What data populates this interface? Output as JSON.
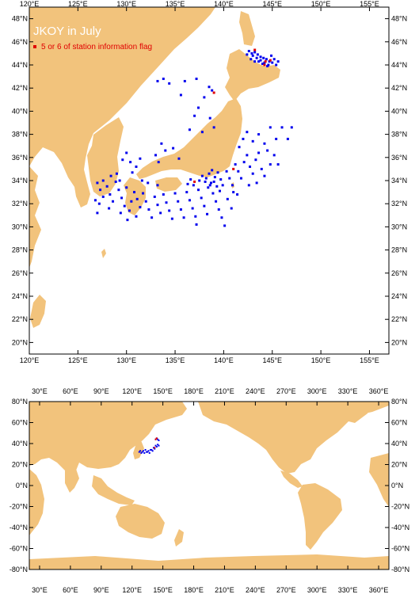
{
  "colors": {
    "land": "#F2C37C",
    "ocean": "#FFFFFF",
    "station": "#0000EE",
    "flagged": "#E00000",
    "frame": "#000000"
  },
  "top_map": {
    "title": "JKOY in July",
    "legend_text": "5 or 6 of station information flag",
    "x_ticks": [
      "120°E",
      "125°E",
      "130°E",
      "135°E",
      "140°E",
      "145°E",
      "150°E",
      "155°E"
    ],
    "x_tick_values": [
      120,
      125,
      130,
      135,
      140,
      145,
      150,
      155
    ],
    "y_ticks": [
      "20°N",
      "22°N",
      "24°N",
      "26°N",
      "28°N",
      "30°N",
      "32°N",
      "34°N",
      "36°N",
      "38°N",
      "40°N",
      "42°N",
      "44°N",
      "46°N",
      "48°N"
    ],
    "y_tick_values": [
      20,
      22,
      24,
      26,
      28,
      30,
      32,
      34,
      36,
      38,
      40,
      42,
      44,
      46,
      48
    ],
    "lon_range": [
      120,
      157
    ],
    "lat_range": [
      19,
      49
    ]
  },
  "bottom_map": {
    "x_ticks": [
      "30°E",
      "60°E",
      "90°E",
      "120°E",
      "150°E",
      "180°E",
      "210°E",
      "240°E",
      "270°E",
      "300°E",
      "330°E",
      "360°E"
    ],
    "x_tick_values": [
      30,
      60,
      90,
      120,
      150,
      180,
      210,
      240,
      270,
      300,
      330,
      360
    ],
    "y_ticks": [
      "80°N",
      "60°N",
      "40°N",
      "20°N",
      "0°N",
      "-20°N",
      "-40°N",
      "-60°N",
      "-80°N"
    ],
    "y_tick_values": [
      80,
      60,
      40,
      20,
      0,
      -20,
      -40,
      -60,
      -80
    ],
    "lon_range": [
      20,
      370
    ],
    "lat_range": [
      -80,
      80
    ]
  },
  "chart_data": {
    "type": "scatter",
    "stations": [
      [
        127.0,
        33.8
      ],
      [
        127.3,
        33.2
      ],
      [
        127.6,
        32.6
      ],
      [
        127.2,
        32.0
      ],
      [
        128.0,
        33.5
      ],
      [
        128.3,
        32.8
      ],
      [
        128.6,
        32.2
      ],
      [
        128.2,
        31.6
      ],
      [
        128.9,
        33.9
      ],
      [
        129.2,
        33.2
      ],
      [
        129.5,
        32.5
      ],
      [
        129.8,
        31.8
      ],
      [
        129.4,
        31.2
      ],
      [
        130.1,
        30.6
      ],
      [
        130.3,
        31.4
      ],
      [
        130.5,
        32.2
      ],
      [
        130.8,
        33.0
      ],
      [
        131.1,
        32.4
      ],
      [
        131.4,
        31.7
      ],
      [
        131.0,
        30.9
      ],
      [
        131.7,
        32.9
      ],
      [
        132.0,
        32.2
      ],
      [
        132.3,
        31.5
      ],
      [
        132.6,
        30.8
      ],
      [
        132.9,
        32.6
      ],
      [
        133.2,
        31.9
      ],
      [
        133.5,
        31.2
      ],
      [
        133.8,
        32.8
      ],
      [
        134.1,
        32.1
      ],
      [
        134.4,
        31.4
      ],
      [
        134.7,
        30.7
      ],
      [
        135.0,
        32.9
      ],
      [
        135.3,
        32.2
      ],
      [
        135.6,
        31.5
      ],
      [
        135.9,
        30.8
      ],
      [
        136.2,
        33.0
      ],
      [
        136.5,
        32.3
      ],
      [
        136.8,
        31.6
      ],
      [
        137.1,
        30.9
      ],
      [
        137.4,
        33.2
      ],
      [
        137.7,
        32.5
      ],
      [
        138.0,
        31.8
      ],
      [
        138.3,
        31.1
      ],
      [
        137.2,
        30.2
      ],
      [
        138.6,
        33.6
      ],
      [
        138.9,
        32.9
      ],
      [
        139.2,
        32.2
      ],
      [
        139.5,
        31.5
      ],
      [
        139.8,
        30.8
      ],
      [
        140.1,
        30.1
      ],
      [
        138.2,
        34.2
      ],
      [
        138.5,
        34.6
      ],
      [
        138.8,
        34.9
      ],
      [
        139.1,
        34.3
      ],
      [
        139.4,
        34.7
      ],
      [
        139.7,
        34.1
      ],
      [
        139.9,
        33.6
      ],
      [
        139.6,
        33.1
      ],
      [
        138.7,
        33.8
      ],
      [
        139.3,
        33.5
      ],
      [
        137.8,
        34.4
      ],
      [
        138.1,
        33.9
      ],
      [
        138.4,
        33.4
      ],
      [
        139.0,
        33.9
      ],
      [
        137.5,
        34.0
      ],
      [
        136.9,
        33.6
      ],
      [
        136.6,
        34.1
      ],
      [
        136.3,
        33.7
      ],
      [
        140.3,
        34.8
      ],
      [
        140.6,
        34.2
      ],
      [
        140.9,
        33.6
      ],
      [
        141.2,
        35.4
      ],
      [
        141.5,
        34.8
      ],
      [
        141.8,
        34.2
      ],
      [
        142.1,
        35.6
      ],
      [
        142.4,
        36.2
      ],
      [
        142.7,
        35.2
      ],
      [
        143.0,
        34.6
      ],
      [
        143.3,
        35.8
      ],
      [
        143.6,
        36.4
      ],
      [
        143.9,
        35.0
      ],
      [
        144.2,
        34.4
      ],
      [
        144.5,
        36.6
      ],
      [
        144.8,
        35.4
      ],
      [
        141.6,
        36.9
      ],
      [
        142.0,
        37.6
      ],
      [
        142.4,
        38.2
      ],
      [
        143.0,
        37.4
      ],
      [
        143.6,
        38.0
      ],
      [
        144.2,
        37.2
      ],
      [
        144.8,
        38.6
      ],
      [
        145.4,
        37.6
      ],
      [
        146.0,
        38.6
      ],
      [
        146.6,
        37.6
      ],
      [
        147.0,
        38.6
      ],
      [
        145.6,
        35.4
      ],
      [
        145.2,
        36.2
      ],
      [
        143.4,
        33.8
      ],
      [
        142.6,
        33.6
      ],
      [
        141.0,
        33.0
      ],
      [
        140.4,
        32.4
      ],
      [
        141.4,
        32.8
      ],
      [
        140.8,
        31.6
      ],
      [
        133.0,
        36.2
      ],
      [
        133.6,
        37.2
      ],
      [
        134.0,
        36.6
      ],
      [
        133.3,
        35.6
      ],
      [
        131.4,
        35.9
      ],
      [
        131.0,
        35.2
      ],
      [
        130.6,
        34.7
      ],
      [
        129.6,
        35.8
      ],
      [
        130.0,
        36.4
      ],
      [
        130.4,
        35.6
      ],
      [
        136.5,
        38.4
      ],
      [
        137.0,
        39.6
      ],
      [
        137.4,
        40.3
      ],
      [
        138.0,
        41.2
      ],
      [
        138.5,
        42.1
      ],
      [
        136.0,
        42.6
      ],
      [
        135.6,
        41.4
      ],
      [
        134.4,
        42.4
      ],
      [
        133.8,
        42.8
      ],
      [
        133.2,
        42.6
      ],
      [
        137.2,
        42.8
      ],
      [
        138.8,
        41.8
      ],
      [
        139.0,
        38.6
      ],
      [
        138.6,
        39.4
      ],
      [
        137.8,
        38.2
      ],
      [
        134.8,
        36.8
      ],
      [
        135.4,
        35.9
      ],
      [
        127.6,
        34.0
      ],
      [
        128.4,
        34.4
      ],
      [
        129.0,
        34.6
      ],
      [
        129.3,
        34.0
      ],
      [
        130.0,
        33.4
      ],
      [
        126.8,
        32.3
      ],
      [
        127.0,
        31.2
      ],
      [
        133.2,
        33.6
      ],
      [
        132.2,
        33.8
      ],
      [
        131.6,
        34.0
      ]
    ],
    "hokkaido_stations": [
      [
        142.6,
        45.2
      ],
      [
        142.9,
        45.0
      ],
      [
        143.2,
        45.1
      ],
      [
        143.5,
        44.9
      ],
      [
        143.8,
        44.7
      ],
      [
        144.1,
        44.6
      ],
      [
        144.4,
        44.5
      ],
      [
        144.7,
        44.3
      ],
      [
        145.0,
        44.2
      ],
      [
        143.0,
        44.8
      ],
      [
        143.4,
        44.6
      ],
      [
        143.8,
        44.4
      ],
      [
        144.2,
        44.2
      ],
      [
        144.6,
        44.0
      ],
      [
        142.8,
        44.5
      ],
      [
        143.6,
        44.3
      ],
      [
        144.0,
        44.1
      ],
      [
        144.5,
        43.9
      ],
      [
        145.2,
        44.5
      ],
      [
        145.4,
        44.0
      ],
      [
        142.4,
        44.9
      ],
      [
        144.9,
        44.8
      ],
      [
        145.6,
        44.3
      ],
      [
        143.2,
        44.3
      ]
    ],
    "flagged_stations": [
      [
        143.2,
        45.3
      ],
      [
        144.3,
        44.3
      ],
      [
        144.8,
        44.4
      ],
      [
        137.0,
        33.9
      ],
      [
        141.0,
        35.0
      ],
      [
        139.0,
        41.6
      ],
      [
        144.2,
        44.0
      ]
    ],
    "world_stations": [
      [
        128,
        33
      ],
      [
        130,
        32
      ],
      [
        132,
        31
      ],
      [
        134,
        32
      ],
      [
        136,
        33
      ],
      [
        138,
        34
      ],
      [
        140,
        33
      ],
      [
        142,
        35
      ],
      [
        144,
        37
      ],
      [
        146,
        38
      ],
      [
        127,
        32
      ],
      [
        129,
        31
      ],
      [
        131,
        33
      ],
      [
        133,
        34
      ],
      [
        135,
        32
      ],
      [
        137,
        31
      ],
      [
        139,
        34
      ],
      [
        141,
        36
      ],
      [
        143,
        38
      ],
      [
        145,
        39
      ],
      [
        143,
        44
      ],
      [
        144,
        45
      ],
      [
        145,
        44
      ],
      [
        146,
        43
      ]
    ],
    "world_flagged": [
      [
        144,
        45
      ],
      [
        143,
        44
      ],
      [
        142,
        36
      ]
    ]
  }
}
